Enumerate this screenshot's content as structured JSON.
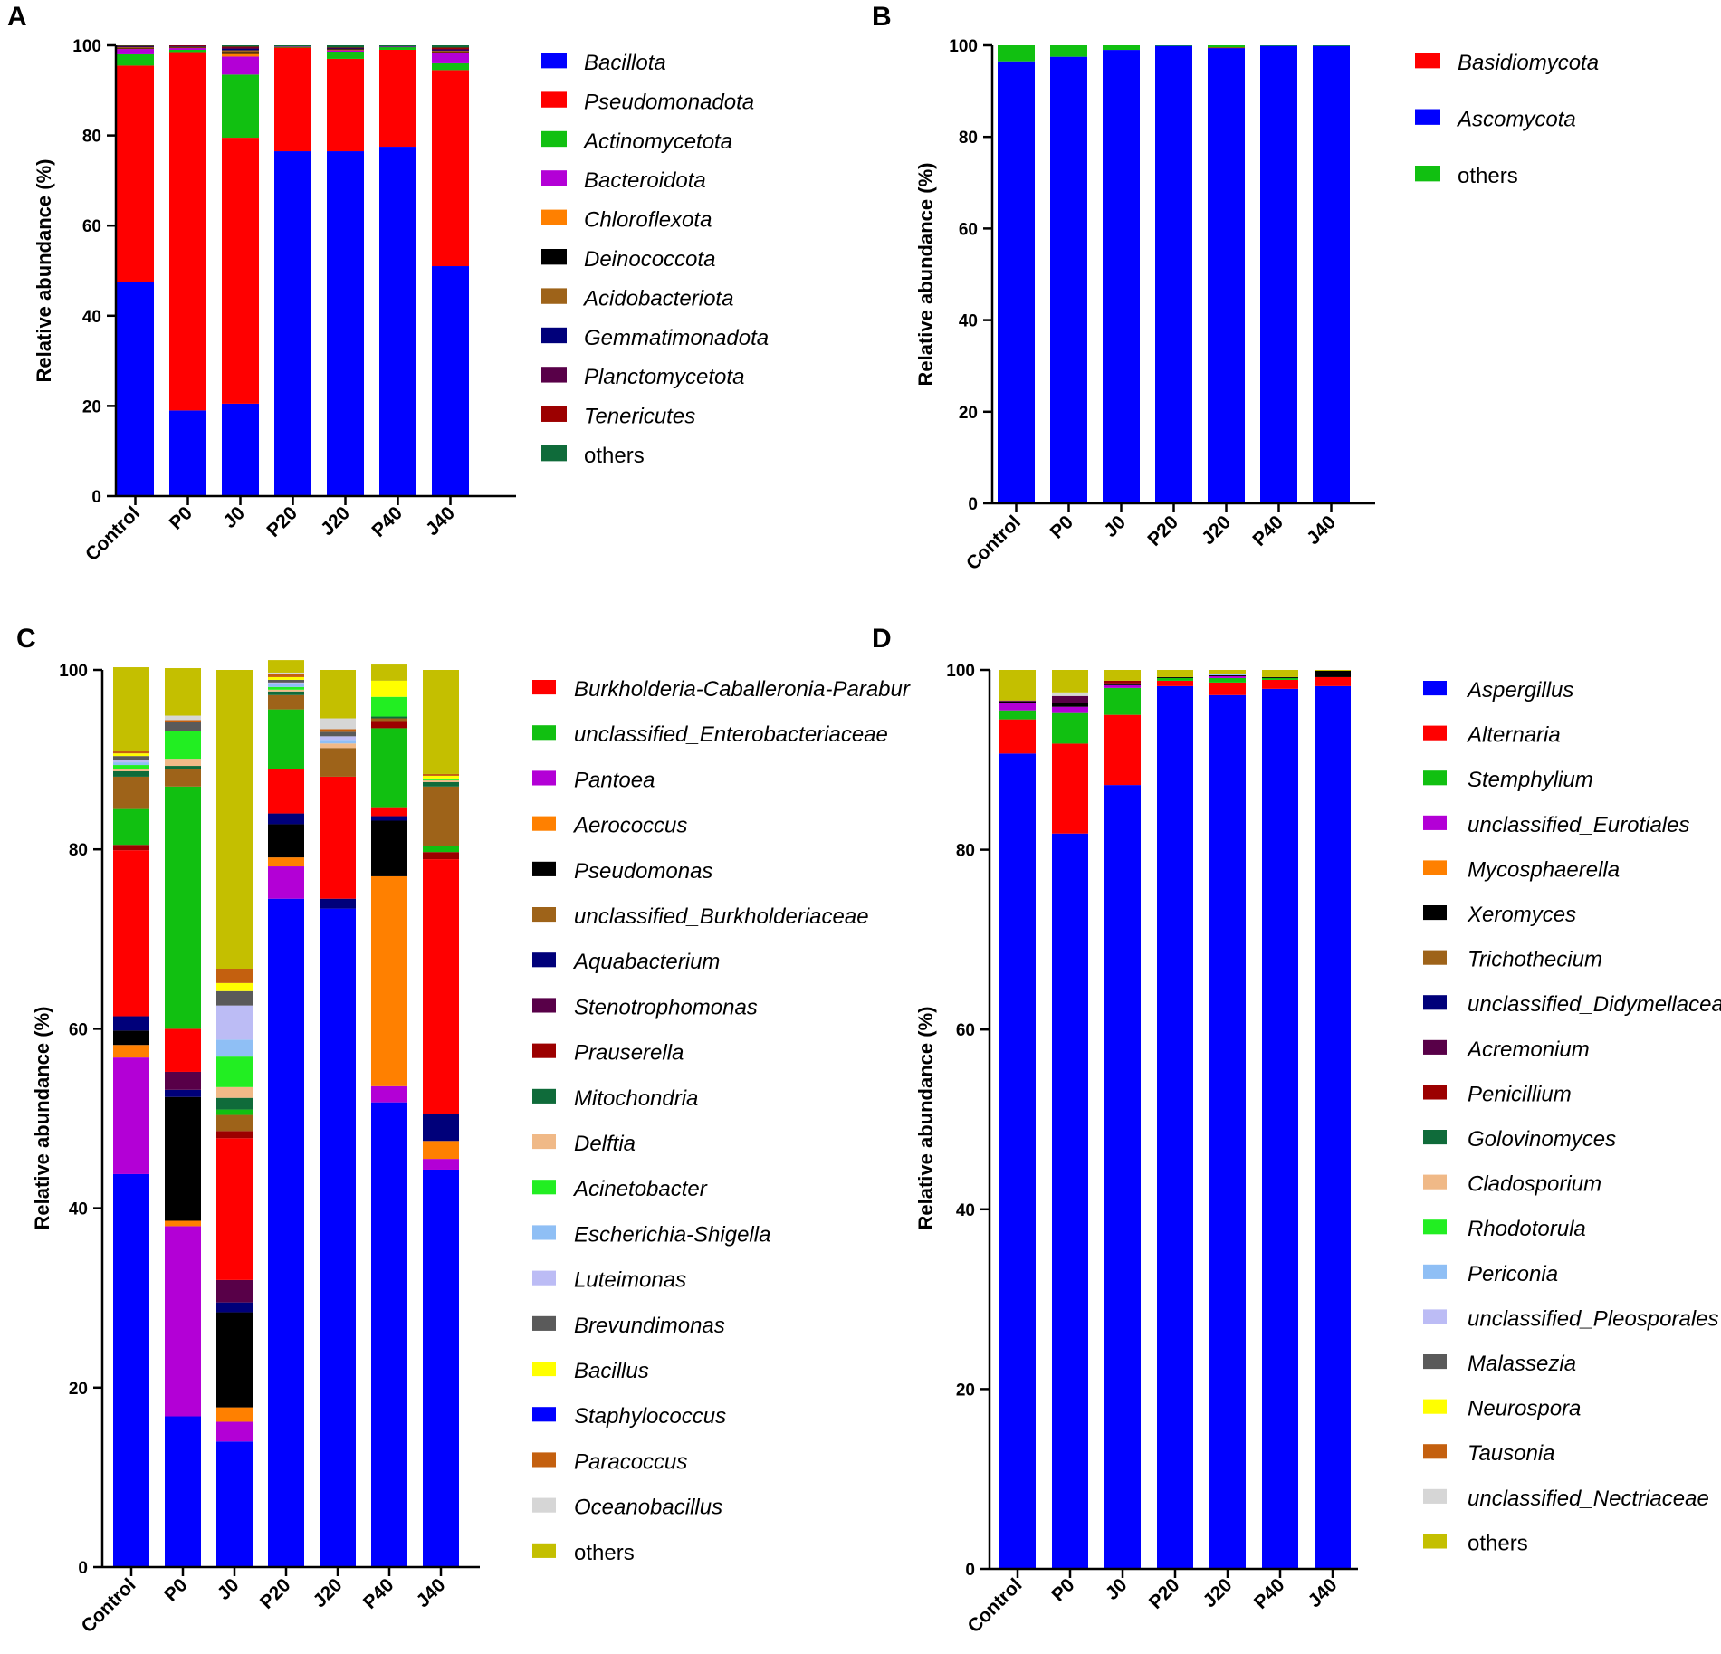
{
  "chart_data": [
    {
      "panel": "A",
      "type": "bar",
      "stacked": true,
      "ylabel": "Relative abundance (%)",
      "ylim": [
        0,
        100
      ],
      "yticks": [
        0,
        20,
        40,
        60,
        80,
        100
      ],
      "categories": [
        "Control",
        "P0",
        "J0",
        "P20",
        "J20",
        "P40",
        "J40"
      ],
      "series": [
        {
          "name": "Bacillota",
          "color": "#0000ff",
          "values": [
            47.5,
            19,
            20.5,
            76.5,
            76.5,
            77.5,
            51
          ]
        },
        {
          "name": "Pseudomonadota",
          "color": "#ff0000",
          "values": [
            48,
            79.5,
            59,
            23,
            20.5,
            21.5,
            43.5
          ]
        },
        {
          "name": "Actinomycetota",
          "color": "#11c011",
          "values": [
            2.5,
            0.5,
            14,
            0.2,
            1.6,
            0.6,
            1.5
          ]
        },
        {
          "name": "Bacteroidota",
          "color": "#b300d6",
          "values": [
            1.2,
            0.4,
            4,
            0.1,
            0.3,
            0.1,
            2.4
          ]
        },
        {
          "name": "Chloroflexota",
          "color": "#ff8000",
          "values": [
            0.1,
            0.1,
            0.6,
            0,
            0.1,
            0,
            0.1
          ]
        },
        {
          "name": "Deinococcota",
          "color": "#000000",
          "values": [
            0.1,
            0.1,
            0.4,
            0,
            0.1,
            0,
            0.1
          ]
        },
        {
          "name": "Acidobacteriota",
          "color": "#9e6319",
          "values": [
            0.2,
            0.1,
            0.4,
            0,
            0.1,
            0,
            0.2
          ]
        },
        {
          "name": "Gemmatimonadota",
          "color": "#00007a",
          "values": [
            0.1,
            0.1,
            0.3,
            0,
            0.1,
            0,
            0.1
          ]
        },
        {
          "name": "Planctomycetota",
          "color": "#580048",
          "values": [
            0.1,
            0.1,
            0.3,
            0,
            0.1,
            0,
            0.3
          ]
        },
        {
          "name": "Tenericutes",
          "color": "#9c0000",
          "values": [
            0.1,
            0.1,
            0.2,
            0,
            0.1,
            0,
            0.3
          ]
        },
        {
          "name": "others",
          "color": "#0f6b3a",
          "values": [
            0.1,
            0,
            0.3,
            0.2,
            0.5,
            0.3,
            0.5
          ]
        }
      ],
      "legend_italic": [
        true,
        true,
        true,
        true,
        true,
        true,
        true,
        true,
        true,
        true,
        false
      ]
    },
    {
      "panel": "B",
      "type": "bar",
      "stacked": true,
      "ylabel": "Relative abundance (%)",
      "ylim": [
        0,
        100
      ],
      "yticks": [
        0,
        20,
        40,
        60,
        80,
        100
      ],
      "categories": [
        "Control",
        "P0",
        "J0",
        "P20",
        "J20",
        "P40",
        "J40"
      ],
      "series": [
        {
          "name": "Basidiomycota",
          "color": "#ff0000",
          "values": [
            0,
            0,
            0,
            0,
            0.1,
            0,
            0
          ]
        },
        {
          "name": "Ascomycota",
          "color": "#0000ff",
          "values": [
            96.5,
            97.5,
            99,
            99.9,
            99.4,
            99.9,
            99.9
          ]
        },
        {
          "name": "others",
          "color": "#11c011",
          "values": [
            3.5,
            2.5,
            1,
            0.1,
            0.5,
            0.1,
            0.1
          ]
        }
      ],
      "stack_order": [
        1,
        0,
        2
      ],
      "legend_italic": [
        true,
        true,
        false
      ]
    },
    {
      "panel": "C",
      "type": "bar",
      "stacked": true,
      "ylabel": "Relative abundance (%)",
      "ylim": [
        0,
        100
      ],
      "yticks": [
        0,
        20,
        40,
        60,
        80,
        100
      ],
      "categories": [
        "Control",
        "P0",
        "J0",
        "P20",
        "J20",
        "P40",
        "J40"
      ],
      "series": [
        {
          "name": "Staphylococcus",
          "color": "#0000ff",
          "values": [
            43.8,
            16.8,
            14,
            74.5,
            73.4,
            51.8,
            44.3
          ]
        },
        {
          "name": "Pantoea",
          "color": "#b300d6",
          "values": [
            13,
            21.2,
            2.2,
            3.6,
            0,
            1.8,
            1.2
          ]
        },
        {
          "name": "Aerococcus",
          "color": "#ff8000",
          "values": [
            1.4,
            0.6,
            1.6,
            1,
            0,
            23.4,
            2
          ]
        },
        {
          "name": "Pseudomonas",
          "color": "#000000",
          "values": [
            1.6,
            13.8,
            10.6,
            3.7,
            0,
            6.2,
            0
          ]
        },
        {
          "name": "Aquabacterium",
          "color": "#00007a",
          "values": [
            1.6,
            0.8,
            1.1,
            1.2,
            1.1,
            0.5,
            3
          ]
        },
        {
          "name": "Stenotrophomonas",
          "color": "#580048",
          "values": [
            0,
            2,
            2.5,
            0,
            0,
            0,
            0
          ]
        },
        {
          "name": "Burkholderia-Caballeronia-Paraburkholderia",
          "color": "#ff0000",
          "values": [
            18.5,
            4.8,
            15.8,
            5,
            13.6,
            1,
            28.4
          ]
        },
        {
          "name": "Prauserella",
          "color": "#9c0000",
          "values": [
            0,
            0,
            0.8,
            0,
            0,
            0,
            0
          ]
        },
        {
          "name": "unclassified_Burkholderiaceae",
          "color": "#9e6319",
          "values": [
            0,
            0,
            1.8,
            0,
            0,
            0,
            0
          ]
        },
        {
          "name": "unclassified_Enterobacteriaceae",
          "color": "#11c011",
          "values": [
            0,
            0,
            0.6,
            0,
            0,
            0,
            0
          ]
        },
        {
          "name": "Mitochondria",
          "color": "#0f6b3a",
          "values": [
            0,
            0,
            1.3,
            0,
            0,
            0,
            0
          ]
        },
        {
          "name": "Delftia",
          "color": "#f0b987",
          "values": [
            0,
            0,
            1.2,
            0,
            0,
            0,
            0
          ]
        },
        {
          "name": "Acinetobacter",
          "color": "#22ee22",
          "values": [
            0,
            0,
            3.4,
            0,
            0,
            0,
            0
          ]
        },
        {
          "name": "Escherichia-Shigella",
          "color": "#8fbff5",
          "values": [
            0,
            0,
            1.9,
            0,
            0,
            0,
            0
          ]
        },
        {
          "name": "Luteimonas",
          "color": "#bcbcf5",
          "values": [
            0,
            0,
            3.8,
            0,
            0,
            0,
            0
          ]
        },
        {
          "name": "Brevundimonas",
          "color": "#5a5a5a",
          "values": [
            0,
            0,
            1.6,
            0,
            0,
            0,
            0
          ]
        },
        {
          "name": "Bacillus",
          "color": "#ffff00",
          "values": [
            0,
            0,
            0.9,
            0,
            0,
            0,
            0
          ]
        },
        {
          "name": "Paracoccus",
          "color": "#c4600f",
          "values": [
            0,
            0,
            1.6,
            0,
            0,
            0,
            0
          ]
        },
        {
          "name": "Prauserella*",
          "color": "#9c0000",
          "values": [
            0.6,
            0,
            0,
            0,
            0,
            0,
            0.8
          ]
        },
        {
          "name": "unclassified_Enterobacteriaceae*",
          "color": "#11c011",
          "values": [
            4,
            27,
            0,
            6.6,
            0,
            8.8,
            0.7
          ]
        },
        {
          "name": "Prauserella**",
          "color": "#9c0000",
          "values": [
            0,
            0,
            0,
            0,
            0,
            0.8,
            0
          ]
        },
        {
          "name": "unclassified_Burkholderiaceae*",
          "color": "#9e6319",
          "values": [
            3.6,
            2,
            0,
            1.6,
            3.2,
            0.3,
            6.6
          ]
        },
        {
          "name": "Mitochondria*",
          "color": "#0f6b3a",
          "values": [
            0.6,
            0.3,
            0,
            0.4,
            0,
            0.2,
            0.5
          ]
        },
        {
          "name": "Delftia*",
          "color": "#f0b987",
          "values": [
            0.3,
            0.8,
            0,
            0.2,
            0.5,
            0,
            0.2
          ]
        },
        {
          "name": "Acinetobacter*",
          "color": "#22ee22",
          "values": [
            0.4,
            3.1,
            0,
            0.3,
            0,
            2.2,
            0.1
          ]
        },
        {
          "name": "Escherichia-Shigella*",
          "color": "#8fbff5",
          "values": [
            0.3,
            0,
            0,
            0.3,
            0.4,
            0,
            0
          ]
        },
        {
          "name": "Luteimonas*",
          "color": "#bcbcf5",
          "values": [
            0.3,
            0,
            0,
            0.2,
            0.4,
            0,
            0
          ]
        },
        {
          "name": "Brevundimonas*",
          "color": "#5a5a5a",
          "values": [
            0.4,
            1,
            0,
            0.3,
            0.5,
            0,
            0.1
          ]
        },
        {
          "name": "Bacillus*",
          "color": "#ffff00",
          "values": [
            0.3,
            0,
            0,
            0.3,
            0,
            1.8,
            0.3
          ]
        },
        {
          "name": "Paracoccus*",
          "color": "#c4600f",
          "values": [
            0.3,
            0.2,
            0,
            0.3,
            0.3,
            0,
            0.2
          ]
        },
        {
          "name": "Oceanobacillus",
          "color": "#d6d6d6",
          "values": [
            0,
            0.5,
            0,
            0.2,
            1.2,
            0,
            0
          ]
        },
        {
          "name": "others",
          "color": "#c4bf00",
          "values": [
            9.3,
            5.3,
            33.3,
            1.4,
            5.4,
            1.8,
            11.6
          ]
        }
      ],
      "legend": [
        "Burkholderia-Caballeronia-Paraburkholderia",
        "unclassified_Enterobacteriaceae",
        "Pantoea",
        "Aerococcus",
        "Pseudomonas",
        "unclassified_Burkholderiaceae",
        "Aquabacterium",
        "Stenotrophomonas",
        "Prauserella",
        "Mitochondria",
        "Delftia",
        "Acinetobacter",
        "Escherichia-Shigella",
        "Luteimonas",
        "Brevundimonas",
        "Bacillus",
        "Staphylococcus",
        "Paracoccus",
        "Oceanobacillus",
        "others"
      ],
      "legend_display": [
        "Burkholderia-Caballeronia-Parabur",
        "unclassified_Enterobacteriaceae",
        "Pantoea",
        "Aerococcus",
        "Pseudomonas",
        "unclassified_Burkholderiaceae",
        "Aquabacterium",
        "Stenotrophomonas",
        "Prauserella",
        "Mitochondria",
        "Delftia",
        "Acinetobacter",
        "Escherichia-Shigella",
        "Luteimonas",
        "Brevundimonas",
        "Bacillus",
        "Staphylococcus",
        "Paracoccus",
        "Oceanobacillus",
        "others"
      ],
      "legend_colors": [
        "#ff0000",
        "#11c011",
        "#b300d6",
        "#ff8000",
        "#000000",
        "#9e6319",
        "#00007a",
        "#580048",
        "#9c0000",
        "#0f6b3a",
        "#f0b987",
        "#22ee22",
        "#8fbff5",
        "#bcbcf5",
        "#5a5a5a",
        "#ffff00",
        "#0000ff",
        "#c4600f",
        "#d6d6d6",
        "#c4bf00"
      ],
      "legend_italic": [
        true,
        true,
        true,
        true,
        true,
        true,
        true,
        true,
        true,
        true,
        true,
        true,
        true,
        true,
        true,
        true,
        true,
        true,
        true,
        false
      ]
    },
    {
      "panel": "D",
      "type": "bar",
      "stacked": true,
      "ylabel": "Relative abundance (%)",
      "ylim": [
        0,
        100
      ],
      "yticks": [
        0,
        20,
        40,
        60,
        80,
        100
      ],
      "categories": [
        "Control",
        "P0",
        "J0",
        "P20",
        "J20",
        "P40",
        "J40"
      ],
      "series": [
        {
          "name": "Aspergillus",
          "color": "#0000ff",
          "values": [
            90.7,
            81.8,
            87.2,
            98.2,
            97.2,
            97.9,
            98.2
          ]
        },
        {
          "name": "Alternaria",
          "color": "#ff0000",
          "values": [
            3.8,
            10,
            7.8,
            0.6,
            1.4,
            1,
            1
          ]
        },
        {
          "name": "Stemphylium",
          "color": "#11c011",
          "values": [
            1,
            3.4,
            3,
            0.3,
            0.5,
            0.2,
            0
          ]
        },
        {
          "name": "unclassified_Eurotiales",
          "color": "#b300d6",
          "values": [
            0.8,
            0.7,
            0.3,
            0,
            0.2,
            0,
            0
          ]
        },
        {
          "name": "Mycosphaerella",
          "color": "#ff8000",
          "values": [
            0,
            0,
            0,
            0,
            0,
            0,
            0
          ]
        },
        {
          "name": "Xeromyces",
          "color": "#000000",
          "values": [
            0.2,
            0.4,
            0.2,
            0.1,
            0.1,
            0.1,
            0.7
          ]
        },
        {
          "name": "Trichothecium",
          "color": "#9e6319",
          "values": [
            0,
            0,
            0,
            0,
            0,
            0,
            0
          ]
        },
        {
          "name": "unclassified_Didymellaceae",
          "color": "#00007a",
          "values": [
            0,
            0,
            0,
            0,
            0,
            0,
            0
          ]
        },
        {
          "name": "Acremonium",
          "color": "#580048",
          "values": [
            0.1,
            0.8,
            0,
            0,
            0,
            0,
            0
          ]
        },
        {
          "name": "Penicillium",
          "color": "#9c0000",
          "values": [
            0,
            0,
            0.3,
            0,
            0,
            0,
            0
          ]
        },
        {
          "name": "Golovinomyces",
          "color": "#0f6b3a",
          "values": [
            0,
            0,
            0,
            0,
            0,
            0,
            0
          ]
        },
        {
          "name": "Cladosporium",
          "color": "#f0b987",
          "values": [
            0,
            0,
            0,
            0,
            0,
            0,
            0
          ]
        },
        {
          "name": "Rhodotorula",
          "color": "#22ee22",
          "values": [
            0,
            0,
            0,
            0,
            0,
            0,
            0
          ]
        },
        {
          "name": "Periconia",
          "color": "#8fbff5",
          "values": [
            0,
            0,
            0,
            0,
            0.2,
            0,
            0
          ]
        },
        {
          "name": "unclassified_Pleosporales",
          "color": "#bcbcf5",
          "values": [
            0,
            0,
            0,
            0,
            0,
            0,
            0
          ]
        },
        {
          "name": "Malassezia",
          "color": "#5a5a5a",
          "values": [
            0,
            0,
            0,
            0,
            0,
            0,
            0
          ]
        },
        {
          "name": "Neurospora",
          "color": "#ffff00",
          "values": [
            0,
            0,
            0,
            0,
            0,
            0,
            0
          ]
        },
        {
          "name": "Tausonia",
          "color": "#c4600f",
          "values": [
            0,
            0,
            0,
            0,
            0,
            0,
            0
          ]
        },
        {
          "name": "unclassified_Nectriaceae",
          "color": "#d6d6d6",
          "values": [
            0,
            0.4,
            0,
            0,
            0,
            0,
            0
          ]
        },
        {
          "name": "others",
          "color": "#c4bf00",
          "values": [
            3.4,
            2.5,
            1.2,
            0.8,
            0.4,
            0.8,
            0.1
          ]
        }
      ],
      "legend_italic": [
        true,
        true,
        true,
        true,
        true,
        true,
        true,
        true,
        true,
        true,
        true,
        true,
        true,
        true,
        true,
        true,
        true,
        true,
        true,
        false
      ]
    }
  ]
}
